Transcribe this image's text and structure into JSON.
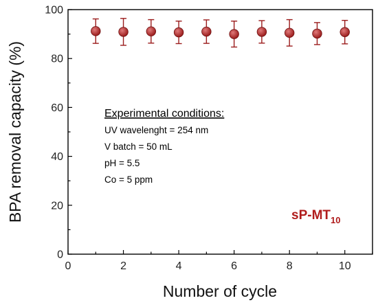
{
  "colors": {
    "marker": "#9b1c1c",
    "marker_highlight": "#e07a7a",
    "axis": "#000000"
  },
  "chart_data": {
    "type": "scatter",
    "xlabel": "Number of cycle",
    "ylabel": "BPA removal capacity (%)",
    "xlim": [
      0,
      11
    ],
    "ylim": [
      0,
      100
    ],
    "xticks": [
      0,
      2,
      4,
      6,
      8,
      10
    ],
    "yticks": [
      0,
      20,
      40,
      60,
      80,
      100
    ],
    "grid": false,
    "series": [
      {
        "x": [
          1,
          2,
          3,
          4,
          5,
          6,
          7,
          8,
          9,
          10
        ],
        "y": [
          91.2,
          90.9,
          91.1,
          90.7,
          91.0,
          90.0,
          90.9,
          90.5,
          90.2,
          90.8
        ],
        "error": [
          5.0,
          5.5,
          4.8,
          4.6,
          4.8,
          5.3,
          4.6,
          5.4,
          4.5,
          4.8
        ]
      }
    ],
    "annotations": {
      "conditions_heading": "Experimental conditions:",
      "conditions": [
        "UV wavelenght = 254 nm",
        "V batch = 50 mL",
        "pH = 5.5",
        "Co = 5 ppm"
      ],
      "sample_label": "sP-MT",
      "sample_subscript": "10"
    }
  }
}
